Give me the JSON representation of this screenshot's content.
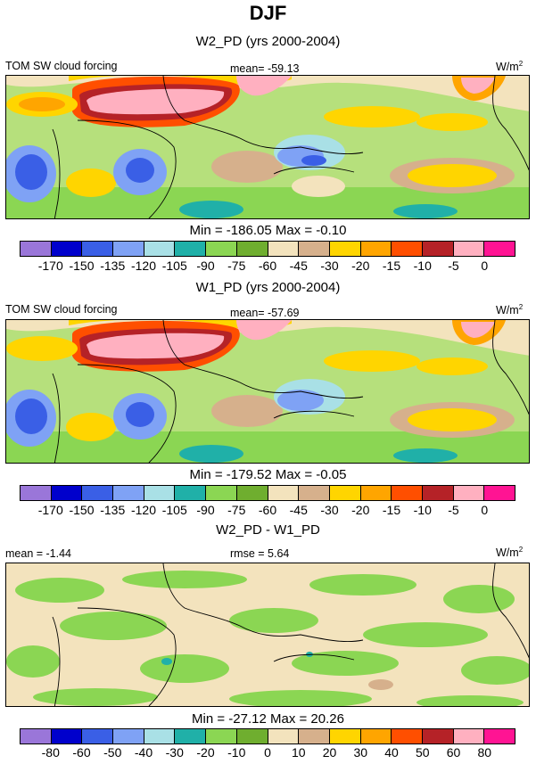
{
  "title": "DJF",
  "colors": [
    "#9a76d9",
    "#0000cc",
    "#3a5fe6",
    "#7fa2f5",
    "#a9e0e6",
    "#20b0a8",
    "#8bd653",
    "#6fae2f",
    "#f3e3bd",
    "#d6b08c",
    "#ffd500",
    "#ffa500",
    "#ff4f00",
    "#b52227",
    "#ffb0c0",
    "#ff1493"
  ],
  "panels": [
    {
      "title": "W2_PD (yrs 2000-2004)",
      "left_label": "TOM SW cloud forcing",
      "mean_label": "mean= -59.13",
      "units_base": "W/m",
      "units_exp": "2",
      "minmax": "Min = -186.05 Max =  -0.10",
      "ticks": [
        "-170",
        "-150",
        "-135",
        "-120",
        "-105",
        "-90",
        "-75",
        "-60",
        "-45",
        "-30",
        "-20",
        "-15",
        "-10",
        "-5",
        "0"
      ]
    },
    {
      "title": "W1_PD (yrs 2000-2004)",
      "left_label": "TOM SW cloud forcing",
      "mean_label": "mean= -57.69",
      "units_base": "W/m",
      "units_exp": "2",
      "minmax": "Min = -179.52 Max =  -0.05",
      "ticks": [
        "-170",
        "-150",
        "-135",
        "-120",
        "-105",
        "-90",
        "-75",
        "-60",
        "-45",
        "-30",
        "-20",
        "-15",
        "-10",
        "-5",
        "0"
      ]
    },
    {
      "title": "W2_PD - W1_PD",
      "left_label": "mean =  -1.44",
      "mean_label": "rmse =  5.64",
      "units_base": "W/m",
      "units_exp": "2",
      "minmax": "Min = -27.12 Max =  20.26",
      "ticks": [
        "-80",
        "-60",
        "-50",
        "-40",
        "-30",
        "-20",
        "-10",
        "0",
        "10",
        "20",
        "30",
        "40",
        "50",
        "60",
        "80"
      ]
    }
  ],
  "chart_data": [
    {
      "type": "heatmap",
      "title": "W2_PD (yrs 2000-2004)",
      "variable": "TOM SW cloud forcing",
      "mean": -59.13,
      "min": -186.05,
      "max": -0.1,
      "units": "W/m2",
      "contour_levels": [
        -170,
        -150,
        -135,
        -120,
        -105,
        -90,
        -75,
        -60,
        -45,
        -30,
        -20,
        -15,
        -10,
        -5,
        0
      ]
    },
    {
      "type": "heatmap",
      "title": "W1_PD (yrs 2000-2004)",
      "variable": "TOM SW cloud forcing",
      "mean": -57.69,
      "min": -179.52,
      "max": -0.05,
      "units": "W/m2",
      "contour_levels": [
        -170,
        -150,
        -135,
        -120,
        -105,
        -90,
        -75,
        -60,
        -45,
        -30,
        -20,
        -15,
        -10,
        -5,
        0
      ]
    },
    {
      "type": "heatmap",
      "title": "W2_PD - W1_PD",
      "mean": -1.44,
      "rmse": 5.64,
      "min": -27.12,
      "max": 20.26,
      "units": "W/m2",
      "contour_levels": [
        -80,
        -60,
        -50,
        -40,
        -30,
        -20,
        -10,
        0,
        10,
        20,
        30,
        40,
        50,
        60,
        80
      ]
    }
  ]
}
